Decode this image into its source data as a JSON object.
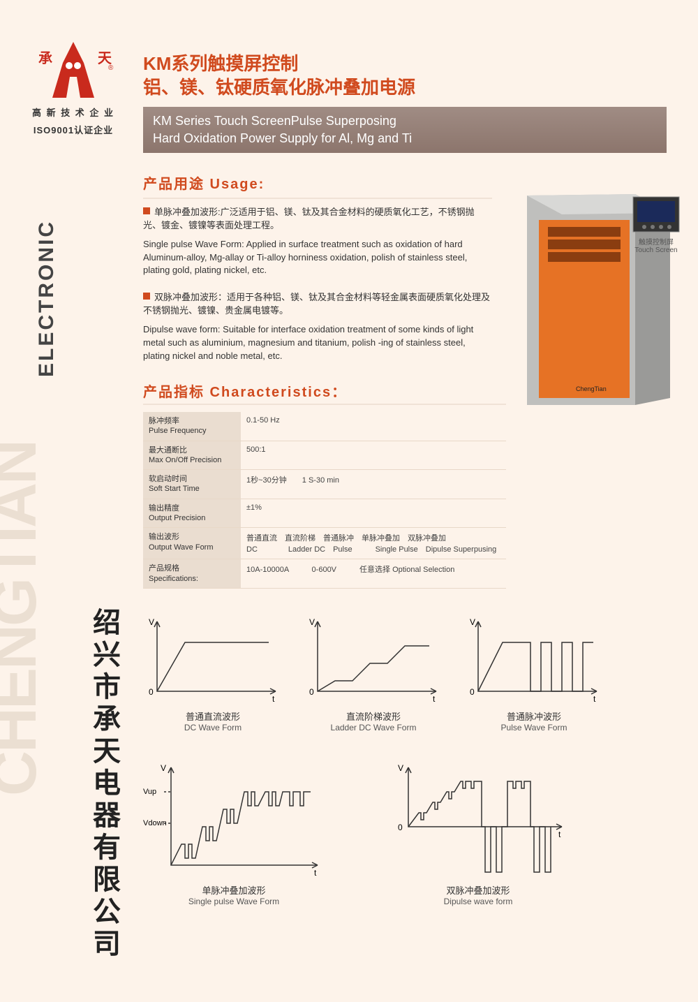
{
  "brand": {
    "logo_left": "承",
    "logo_right": "天",
    "cap1": "高 新 技 术 企 业",
    "cap2": "ISO9001认证企业",
    "logo_color": "#c92a1d"
  },
  "header": {
    "title_cn_l1": "KM系列触摸屏控制",
    "title_cn_l2": "铝、镁、钛硬质氧化脉冲叠加电源",
    "sub_en_l1": "KM Series Touch ScreenPulse Superposing",
    "sub_en_l2": "Hard Oxidation Power Supply for Al, Mg and Ti"
  },
  "usage": {
    "heading": "产品用途  Usage:",
    "p1_cn": "单脉冲叠加波形:广泛适用于铝、镁、钛及其合金材料的硬质氧化工艺，不锈钢抛光、镀金、镀镍等表面处理工程。",
    "p1_en": "Single pulse Wave Form: Applied in surface treatment such as oxidation of hard Aluminum-alloy, Mg-allay or Ti-alloy horniness oxidation, polish of stainless steel, plating gold, plating nickel, etc.",
    "p2_cn": "双脉冲叠加波形：适用于各种铝、镁、钛及其合金材料等轻金属表面硬质氧化处理及不锈钢抛光、镀镍、贵金属电镀等。",
    "p2_en": "Dipulse wave form: Suitable for interface oxidation treatment of some kinds of light metal such as aluminium, magnesium and titanium, polish -ing of stainless steel, plating nickel and noble metal, etc."
  },
  "product": {
    "body_color": "#e67225",
    "side_color": "#bfbfbd",
    "callout_cn": "触摸控制屏",
    "callout_en": "Touch Screen"
  },
  "char": {
    "heading": "产品指标  Characteristics：",
    "rows": [
      {
        "l_cn": "脉冲频率",
        "l_en": "Pulse Frequency",
        "v": "0.1-50 Hz"
      },
      {
        "l_cn": "最大通断比",
        "l_en": "Max On/Off Precision",
        "v": "500:1"
      },
      {
        "l_cn": "软启动时间",
        "l_en": "Soft Start Time",
        "v": "1秒~30分钟　　1 S-30 min"
      },
      {
        "l_cn": "输出精度",
        "l_en": "Output Precision",
        "v": "±1%"
      },
      {
        "l_cn": "输出波形",
        "l_en": "Output Wave Form",
        "v": "普通直流　直流阶梯　普通脉冲　单脉冲叠加　双脉冲叠加\nDC　　　　Ladder DC　Pulse　　　Single Pulse　Dipulse Superpusing"
      },
      {
        "l_cn": "产品规格",
        "l_en": "Specifications:",
        "v": "10A-10000A　　　0-600V　　　任意选择 Optional Selection"
      }
    ]
  },
  "waveforms": {
    "axis_v": "V",
    "axis_t": "t",
    "axis_zero": "0",
    "vup": "Vup",
    "vdown": "Vdown",
    "stroke": "#333",
    "items": [
      {
        "cn": "普通直流波形",
        "en": "DC Wave Form"
      },
      {
        "cn": "直流阶梯波形",
        "en": "Ladder DC Wave Form"
      },
      {
        "cn": "普通脉冲波形",
        "en": "Pulse Wave Form"
      },
      {
        "cn": "单脉冲叠加波形",
        "en": "Single pulse Wave Form"
      },
      {
        "cn": "双脉冲叠加波形",
        "en": "Dipulse wave form"
      }
    ]
  },
  "side": {
    "vertical_cn": "绍兴市承天电器有限公司",
    "vertical_en": "ELECTRONIC",
    "ghost": "CHENGTIAN"
  }
}
